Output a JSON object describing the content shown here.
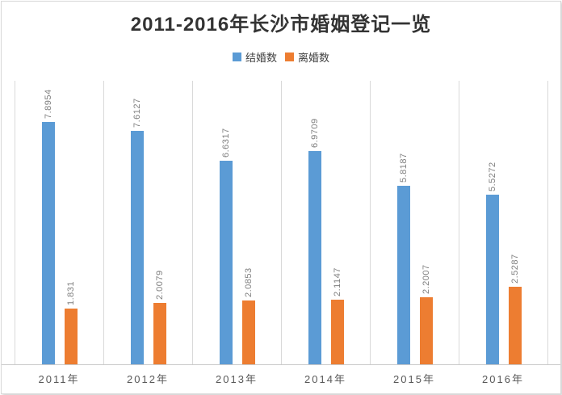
{
  "chart_data": {
    "type": "bar",
    "title": "2011-2016年长沙市婚姻登记一览",
    "categories": [
      "2011年",
      "2012年",
      "2013年",
      "2014年",
      "2015年",
      "2016年"
    ],
    "series": [
      {
        "name": "结婚数",
        "color": "#5b9bd5",
        "values": [
          7.8954,
          7.6127,
          6.6317,
          6.9709,
          5.8187,
          5.5272
        ]
      },
      {
        "name": "离婚数",
        "color": "#ed7d31",
        "values": [
          1.831,
          2.0079,
          2.0853,
          2.1147,
          2.2007,
          2.5287
        ]
      }
    ],
    "xlabel": "",
    "ylabel": "",
    "ylim": [
      0,
      9.25
    ],
    "grid": "vertical category separators only, no horizontal gridlines, no y-axis ticks",
    "legend_position": "top-center",
    "value_labels": "rotated 90deg above each bar",
    "colors": {
      "title": "#333333",
      "value_label": "#7f7f7f",
      "x_tick": "#595959",
      "gridline": "#d9d9d9",
      "axis_line": "#c9c9c9",
      "background": "#ffffff"
    }
  }
}
